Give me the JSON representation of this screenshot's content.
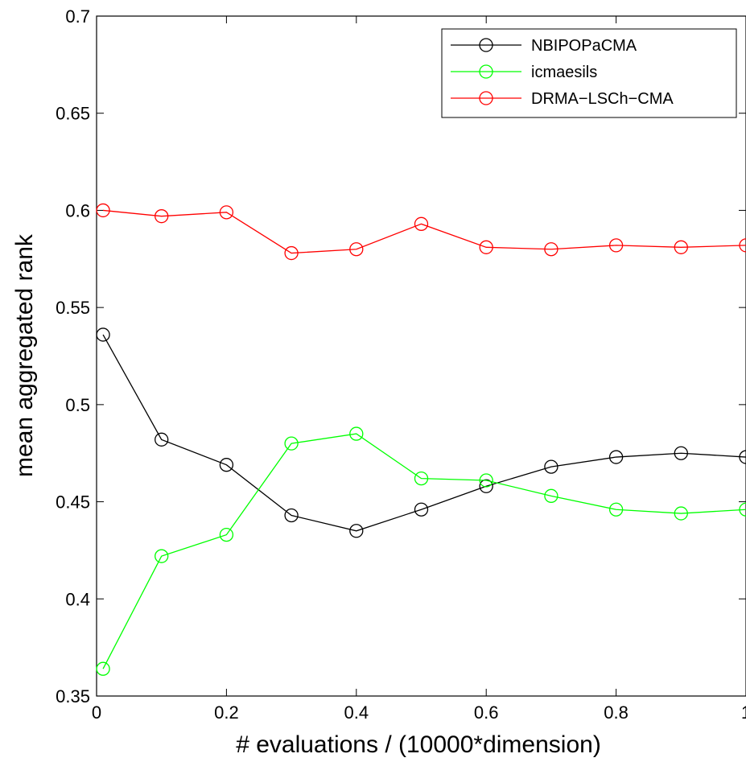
{
  "chart_data": {
    "type": "line",
    "title": "",
    "xlabel": "# evaluations / (10000*dimension)",
    "ylabel": "mean aggregated rank",
    "xlim": [
      0,
      1
    ],
    "ylim": [
      0.35,
      0.7
    ],
    "xticks": [
      0,
      0.2,
      0.4,
      0.6,
      0.8,
      1
    ],
    "xtick_labels": [
      "0",
      "0.2",
      "0.4",
      "0.6",
      "0.8",
      "1"
    ],
    "yticks": [
      0.35,
      0.4,
      0.45,
      0.5,
      0.55,
      0.6,
      0.65,
      0.7
    ],
    "ytick_labels": [
      "0.35",
      "0.4",
      "0.45",
      "0.5",
      "0.55",
      "0.6",
      "0.65",
      "0.7"
    ],
    "grid": false,
    "legend_position": "top-right",
    "x": [
      0.01,
      0.1,
      0.2,
      0.3,
      0.4,
      0.5,
      0.6,
      0.7,
      0.8,
      0.9,
      1.0
    ],
    "series": [
      {
        "name": "NBIPOPaCMA",
        "color": "#000000",
        "values": [
          0.536,
          0.482,
          0.469,
          0.443,
          0.435,
          0.446,
          0.458,
          0.468,
          0.473,
          0.475,
          0.473
        ]
      },
      {
        "name": "icmaesils",
        "color": "#00ff00",
        "values": [
          0.364,
          0.422,
          0.433,
          0.48,
          0.485,
          0.462,
          0.461,
          0.453,
          0.446,
          0.444,
          0.446
        ]
      },
      {
        "name": "DRMA−LSCh−CMA",
        "color": "#ff0000",
        "values": [
          0.6,
          0.597,
          0.599,
          0.578,
          0.58,
          0.593,
          0.581,
          0.58,
          0.582,
          0.581,
          0.582
        ]
      }
    ]
  }
}
